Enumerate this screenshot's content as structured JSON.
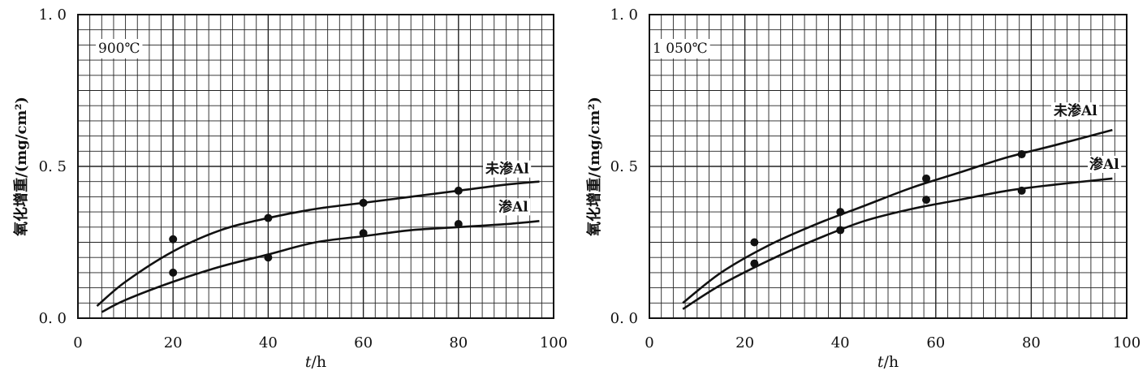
{
  "chart_data": [
    {
      "type": "scatter",
      "condition_label": "900℃",
      "xlabel": "t/h",
      "ylabel": "氧化增重/(mg/cm²)",
      "xlim": [
        0,
        100
      ],
      "ylim": [
        0.0,
        1.0
      ],
      "x_ticks": [
        "0",
        "20",
        "40",
        "60",
        "80",
        "100"
      ],
      "y_ticks": [
        "0.0",
        "0.5",
        "1.0"
      ],
      "grid": true,
      "series": [
        {
          "name": "未渗Al",
          "points": [
            [
              20,
              0.26
            ],
            [
              40,
              0.33
            ],
            [
              60,
              0.38
            ],
            [
              80,
              0.42
            ]
          ],
          "curve": [
            [
              4,
              0.04
            ],
            [
              10,
              0.12
            ],
            [
              20,
              0.22
            ],
            [
              30,
              0.29
            ],
            [
              40,
              0.33
            ],
            [
              50,
              0.36
            ],
            [
              60,
              0.38
            ],
            [
              70,
              0.4
            ],
            [
              80,
              0.42
            ],
            [
              90,
              0.44
            ],
            [
              97,
              0.45
            ]
          ]
        },
        {
          "name": "渗Al",
          "points": [
            [
              20,
              0.15
            ],
            [
              40,
              0.2
            ],
            [
              60,
              0.28
            ],
            [
              80,
              0.31
            ]
          ],
          "curve": [
            [
              5,
              0.02
            ],
            [
              10,
              0.06
            ],
            [
              20,
              0.12
            ],
            [
              30,
              0.17
            ],
            [
              40,
              0.21
            ],
            [
              50,
              0.25
            ],
            [
              60,
              0.27
            ],
            [
              70,
              0.29
            ],
            [
              80,
              0.3
            ],
            [
              90,
              0.31
            ],
            [
              97,
              0.32
            ]
          ]
        }
      ]
    },
    {
      "type": "scatter",
      "condition_label": "1 050℃",
      "xlabel": "t/h",
      "ylabel": "氧化增重/(mg/cm²)",
      "xlim": [
        0,
        100
      ],
      "ylim": [
        0.0,
        1.0
      ],
      "x_ticks": [
        "0",
        "20",
        "40",
        "60",
        "80",
        "100"
      ],
      "y_ticks": [
        "0.0",
        "0.5",
        "1.0"
      ],
      "grid": true,
      "series": [
        {
          "name": "未渗Al",
          "points": [
            [
              22,
              0.25
            ],
            [
              40,
              0.35
            ],
            [
              58,
              0.46
            ],
            [
              78,
              0.54
            ]
          ],
          "curve": [
            [
              7,
              0.05
            ],
            [
              15,
              0.15
            ],
            [
              25,
              0.24
            ],
            [
              35,
              0.31
            ],
            [
              45,
              0.37
            ],
            [
              55,
              0.43
            ],
            [
              65,
              0.48
            ],
            [
              75,
              0.53
            ],
            [
              85,
              0.57
            ],
            [
              97,
              0.62
            ]
          ]
        },
        {
          "name": "渗Al",
          "points": [
            [
              22,
              0.18
            ],
            [
              40,
              0.29
            ],
            [
              58,
              0.39
            ],
            [
              78,
              0.42
            ]
          ],
          "curve": [
            [
              7,
              0.03
            ],
            [
              15,
              0.11
            ],
            [
              25,
              0.19
            ],
            [
              35,
              0.26
            ],
            [
              45,
              0.32
            ],
            [
              55,
              0.36
            ],
            [
              65,
              0.39
            ],
            [
              75,
              0.42
            ],
            [
              85,
              0.44
            ],
            [
              97,
              0.46
            ]
          ]
        }
      ]
    }
  ]
}
